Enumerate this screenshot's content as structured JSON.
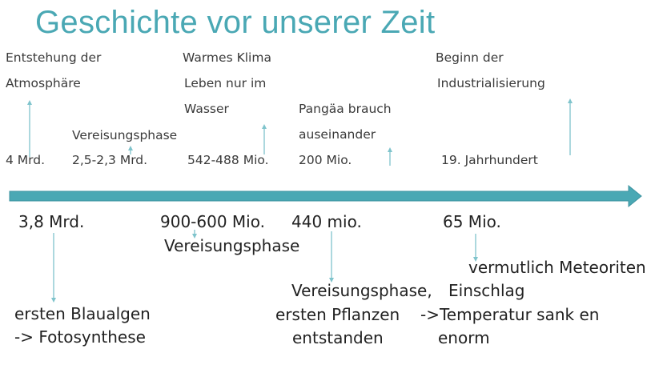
{
  "title": "Geschichte vor unserer Zeit",
  "colors": {
    "title": "#4aa8b4",
    "timeline": "#4aa8b4",
    "pointer": "#7fc4cc"
  },
  "above": {
    "l1": "Entstehung der",
    "l2": "Atmosphäre",
    "l3": "4 Mrd.",
    "l4": "Vereisungsphase",
    "l5": "2,5-2,3 Mrd.",
    "l6": "Warmes Klima",
    "l7": "Leben nur im",
    "l8": "Wasser",
    "l9": "542-488 Mio.",
    "l10": "Pangäa brauch",
    "l11": "auseinander",
    "l12": "200 Mio.",
    "l13": "Beginn der",
    "l14": "Industrialisierung",
    "l15": "19. Jahrhundert"
  },
  "below": {
    "l1": "3,8 Mrd.",
    "l2": "ersten Blaualgen",
    "l3": "-> Fotosynthese",
    "l4": "900-600 Mio.",
    "l5": "Vereisungsphase",
    "l6": "440 mio.",
    "l7": "Vereisungsphase,",
    "l8": "ersten Pflanzen",
    "l9": "entstanden",
    "l10": "65 Mio.",
    "l11": "vermutlich Meteoriten",
    "l12": "Einschlag",
    "l13": "->Temperatur sank en",
    "l14": "enorm"
  }
}
